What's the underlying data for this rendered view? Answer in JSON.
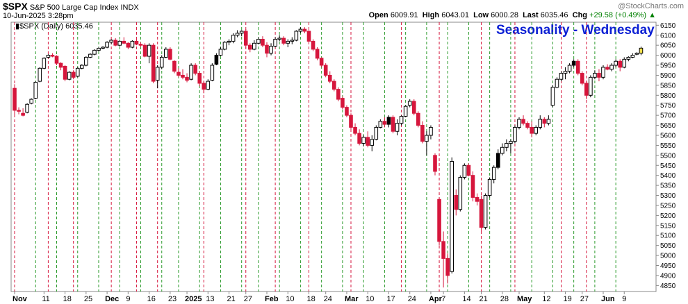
{
  "header": {
    "symbol": "$SPX",
    "description": "S&P 500 Large Cap Index INDX",
    "datetime": "10-Jun-2025 3:28pm",
    "open_label": "Open",
    "open": "6009.91",
    "high_label": "High",
    "high": "6043.01",
    "low_label": "Low",
    "low": "6000.28",
    "last_label": "Last",
    "last": "6035.46",
    "chg_label": "Chg",
    "chg": "+29.58 (+0.49%)",
    "watermark": "@StockCharts.com",
    "legend": "$SPX (Daily) 6035.46",
    "overlay_title": "Seasonality - Wednesday"
  },
  "colors": {
    "up_candle": "#ffffff",
    "down_candle": "#d6163c",
    "last_candle": "#f2e04a",
    "green_lines": "#2a9a2a",
    "red_lines": "#d6163c",
    "title_blue": "#0b1fd4",
    "change_green": "#008000"
  },
  "chart_data": {
    "type": "candlestick",
    "title": "Seasonality - Wednesday",
    "ylim": [
      4820,
      6165
    ],
    "y_ticks": [
      4850,
      4900,
      4950,
      5000,
      5050,
      5100,
      5150,
      5200,
      5250,
      5300,
      5350,
      5400,
      5450,
      5500,
      5550,
      5600,
      5650,
      5700,
      5750,
      5800,
      5850,
      5900,
      5950,
      6000,
      6050,
      6100,
      6150
    ],
    "x_ticks": [
      {
        "label": "Nov",
        "i": 0,
        "bold": true
      },
      {
        "label": "11",
        "i": 7
      },
      {
        "label": "18",
        "i": 12
      },
      {
        "label": "25",
        "i": 17
      },
      {
        "label": "Dec",
        "i": 22,
        "bold": true
      },
      {
        "label": "9",
        "i": 27
      },
      {
        "label": "16",
        "i": 32
      },
      {
        "label": "23",
        "i": 37
      },
      {
        "label": "2025",
        "i": 41,
        "bold": true
      },
      {
        "label": "13",
        "i": 46
      },
      {
        "label": "21",
        "i": 51
      },
      {
        "label": "27",
        "i": 55
      },
      {
        "label": "Feb",
        "i": 60,
        "bold": true
      },
      {
        "label": "10",
        "i": 65
      },
      {
        "label": "18",
        "i": 70
      },
      {
        "label": "24",
        "i": 74
      },
      {
        "label": "Mar",
        "i": 79,
        "bold": true
      },
      {
        "label": "10",
        "i": 84
      },
      {
        "label": "17",
        "i": 89
      },
      {
        "label": "24",
        "i": 94
      },
      {
        "label": "Apr",
        "i": 99,
        "bold": true
      },
      {
        "label": "7",
        "i": 102
      },
      {
        "label": "14",
        "i": 107
      },
      {
        "label": "21",
        "i": 111
      },
      {
        "label": "28",
        "i": 116
      },
      {
        "label": "May",
        "i": 120,
        "bold": true
      },
      {
        "label": "12",
        "i": 126
      },
      {
        "label": "19",
        "i": 131
      },
      {
        "label": "27",
        "i": 135
      },
      {
        "label": "Jun",
        "i": 140,
        "bold": true
      },
      {
        "label": "9",
        "i": 145
      }
    ],
    "wednesday_green": [
      5,
      10,
      15,
      20,
      25,
      30,
      35,
      39,
      44,
      49,
      54,
      58,
      63,
      68,
      73,
      78,
      83,
      88,
      93,
      98,
      103,
      108,
      113,
      118,
      123,
      128,
      133,
      138,
      143
    ],
    "wednesday_red": [
      0,
      8,
      14,
      23,
      29,
      34,
      45,
      55,
      62,
      70,
      80,
      92,
      101,
      111,
      119,
      130,
      136
    ],
    "candles": [
      [
        5835,
        5855,
        5700,
        5725
      ],
      [
        5725,
        5740,
        5705,
        5720
      ],
      [
        5710,
        5735,
        5695,
        5700
      ],
      [
        5715,
        5760,
        5710,
        5755
      ],
      [
        5760,
        5785,
        5755,
        5780
      ],
      [
        5785,
        5870,
        5780,
        5865
      ],
      [
        5870,
        5940,
        5865,
        5935
      ],
      [
        5935,
        5990,
        5930,
        5985
      ],
      [
        5990,
        6005,
        5985,
        6000
      ],
      [
        6000,
        6010,
        5990,
        5995
      ],
      [
        5995,
        6000,
        5950,
        5960
      ],
      [
        5960,
        5965,
        5925,
        5940
      ],
      [
        5945,
        5950,
        5870,
        5880
      ],
      [
        5880,
        5920,
        5875,
        5915
      ],
      [
        5915,
        5925,
        5880,
        5890
      ],
      [
        5895,
        5940,
        5890,
        5935
      ],
      [
        5935,
        5955,
        5930,
        5950
      ],
      [
        5950,
        5995,
        5945,
        5990
      ],
      [
        5990,
        6010,
        5985,
        6005
      ],
      [
        6005,
        6030,
        6000,
        6025
      ],
      [
        6025,
        6040,
        6020,
        6035
      ],
      [
        6035,
        6045,
        6030,
        6040
      ],
      [
        6040,
        6070,
        6035,
        6065
      ],
      [
        6065,
        6080,
        6055,
        6075
      ],
      [
        6075,
        6085,
        6045,
        6050
      ],
      [
        6050,
        6075,
        6045,
        6070
      ],
      [
        6070,
        6090,
        6055,
        6060
      ],
      [
        6060,
        6065,
        6030,
        6040
      ],
      [
        6040,
        6075,
        6035,
        6070
      ],
      [
        6070,
        6080,
        6050,
        6055
      ],
      [
        6055,
        6065,
        6040,
        6050
      ],
      [
        6050,
        6060,
        5990,
        5995
      ],
      [
        5995,
        6060,
        5960,
        6050
      ],
      [
        6050,
        6060,
        5860,
        5870
      ],
      [
        5875,
        5950,
        5835,
        5940
      ],
      [
        5940,
        6000,
        5930,
        5990
      ],
      [
        5990,
        6040,
        5985,
        6030
      ],
      [
        6030,
        6040,
        5975,
        5980
      ],
      [
        5970,
        5975,
        5910,
        5920
      ],
      [
        5915,
        5935,
        5890,
        5900
      ],
      [
        5900,
        5930,
        5880,
        5890
      ],
      [
        5890,
        5910,
        5865,
        5875
      ],
      [
        5880,
        5960,
        5875,
        5950
      ],
      [
        5950,
        5960,
        5900,
        5910
      ],
      [
        5910,
        5920,
        5845,
        5860
      ],
      [
        5860,
        5870,
        5810,
        5830
      ],
      [
        5830,
        5880,
        5825,
        5870
      ],
      [
        5875,
        5960,
        5870,
        5950
      ],
      [
        5955,
        6010,
        5950,
        6000
      ],
      [
        6000,
        6040,
        5995,
        6030
      ],
      [
        6030,
        6070,
        6025,
        6065
      ],
      [
        6065,
        6080,
        6050,
        6070
      ],
      [
        6070,
        6110,
        6060,
        6100
      ],
      [
        6100,
        6125,
        6090,
        6110
      ],
      [
        6110,
        6125,
        6095,
        6120
      ],
      [
        6120,
        6130,
        6035,
        6050
      ],
      [
        6050,
        6060,
        6015,
        6030
      ],
      [
        6030,
        6075,
        6025,
        6060
      ],
      [
        6060,
        6090,
        6055,
        6080
      ],
      [
        6080,
        6095,
        6040,
        6050
      ],
      [
        6050,
        6065,
        5990,
        6010
      ],
      [
        6010,
        6060,
        6000,
        6045
      ],
      [
        6045,
        6090,
        6040,
        6080
      ],
      [
        6080,
        6100,
        6070,
        6085
      ],
      [
        6085,
        6095,
        6050,
        6060
      ],
      [
        6060,
        6080,
        6040,
        6070
      ],
      [
        6070,
        6090,
        6055,
        6075
      ],
      [
        6075,
        6125,
        6070,
        6120
      ],
      [
        6120,
        6140,
        6110,
        6130
      ],
      [
        6130,
        6140,
        6110,
        6120
      ],
      [
        6120,
        6125,
        6060,
        6070
      ],
      [
        6070,
        6080,
        6020,
        6030
      ],
      [
        6030,
        6040,
        5975,
        5985
      ],
      [
        5985,
        5990,
        5940,
        5950
      ],
      [
        5950,
        5960,
        5890,
        5900
      ],
      [
        5900,
        5920,
        5860,
        5870
      ],
      [
        5870,
        5880,
        5820,
        5830
      ],
      [
        5830,
        5840,
        5770,
        5780
      ],
      [
        5785,
        5795,
        5730,
        5740
      ],
      [
        5740,
        5750,
        5690,
        5700
      ],
      [
        5700,
        5710,
        5630,
        5640
      ],
      [
        5640,
        5660,
        5600,
        5610
      ],
      [
        5610,
        5630,
        5550,
        5560
      ],
      [
        5560,
        5600,
        5545,
        5590
      ],
      [
        5590,
        5620,
        5540,
        5550
      ],
      [
        5550,
        5600,
        5520,
        5580
      ],
      [
        5580,
        5650,
        5575,
        5640
      ],
      [
        5640,
        5680,
        5635,
        5670
      ],
      [
        5670,
        5690,
        5640,
        5655
      ],
      [
        5655,
        5700,
        5640,
        5690
      ],
      [
        5690,
        5700,
        5610,
        5620
      ],
      [
        5620,
        5680,
        5600,
        5660
      ],
      [
        5660,
        5700,
        5650,
        5695
      ],
      [
        5695,
        5750,
        5690,
        5745
      ],
      [
        5750,
        5780,
        5740,
        5770
      ],
      [
        5770,
        5780,
        5700,
        5710
      ],
      [
        5710,
        5720,
        5640,
        5650
      ],
      [
        5650,
        5670,
        5560,
        5570
      ],
      [
        5570,
        5620,
        5500,
        5600
      ],
      [
        5600,
        5650,
        5580,
        5640
      ],
      [
        5500,
        5510,
        5400,
        5420
      ],
      [
        5280,
        5290,
        5050,
        5070
      ],
      [
        5070,
        5120,
        4840,
        4985
      ],
      [
        4985,
        5010,
        4860,
        4900
      ],
      [
        4920,
        5490,
        4910,
        5470
      ],
      [
        5300,
        5330,
        5200,
        5230
      ],
      [
        5230,
        5400,
        5220,
        5390
      ],
      [
        5390,
        5460,
        5380,
        5450
      ],
      [
        5450,
        5460,
        5395,
        5400
      ],
      [
        5400,
        5420,
        5270,
        5290
      ],
      [
        5290,
        5310,
        5250,
        5270
      ],
      [
        5280,
        5300,
        5120,
        5140
      ],
      [
        5140,
        5310,
        5130,
        5300
      ],
      [
        5300,
        5390,
        5290,
        5380
      ],
      [
        5380,
        5450,
        5360,
        5440
      ],
      [
        5440,
        5530,
        5430,
        5510
      ],
      [
        5510,
        5560,
        5500,
        5540
      ],
      [
        5540,
        5580,
        5520,
        5560
      ],
      [
        5560,
        5580,
        5510,
        5570
      ],
      [
        5570,
        5650,
        5560,
        5640
      ],
      [
        5640,
        5690,
        5630,
        5680
      ],
      [
        5680,
        5700,
        5650,
        5660
      ],
      [
        5660,
        5670,
        5630,
        5640
      ],
      [
        5640,
        5670,
        5590,
        5610
      ],
      [
        5610,
        5650,
        5600,
        5640
      ],
      [
        5640,
        5700,
        5630,
        5680
      ],
      [
        5680,
        5690,
        5640,
        5660
      ],
      [
        5660,
        5700,
        5650,
        5680
      ],
      [
        5750,
        5850,
        5740,
        5840
      ],
      [
        5840,
        5890,
        5835,
        5880
      ],
      [
        5880,
        5920,
        5870,
        5910
      ],
      [
        5910,
        5940,
        5880,
        5920
      ],
      [
        5920,
        5960,
        5910,
        5950
      ],
      [
        5950,
        5980,
        5940,
        5970
      ],
      [
        5970,
        5980,
        5900,
        5910
      ],
      [
        5910,
        5920,
        5850,
        5860
      ],
      [
        5860,
        5870,
        5780,
        5800
      ],
      [
        5800,
        5900,
        5790,
        5890
      ],
      [
        5890,
        5925,
        5880,
        5910
      ],
      [
        5910,
        5930,
        5870,
        5890
      ],
      [
        5890,
        5950,
        5880,
        5940
      ],
      [
        5940,
        5955,
        5925,
        5930
      ],
      [
        5930,
        5960,
        5920,
        5950
      ],
      [
        5950,
        5980,
        5940,
        5970
      ],
      [
        5970,
        5980,
        5920,
        5940
      ],
      [
        5940,
        5990,
        5935,
        5980
      ],
      [
        5980,
        5995,
        5970,
        5990
      ],
      [
        5990,
        6010,
        5985,
        6000
      ],
      [
        6005,
        6015,
        6000,
        6010
      ],
      [
        6009.91,
        6043.01,
        6000.28,
        6035.46
      ]
    ],
    "filled_up": [
      27,
      48,
      89,
      115,
      133
    ]
  }
}
